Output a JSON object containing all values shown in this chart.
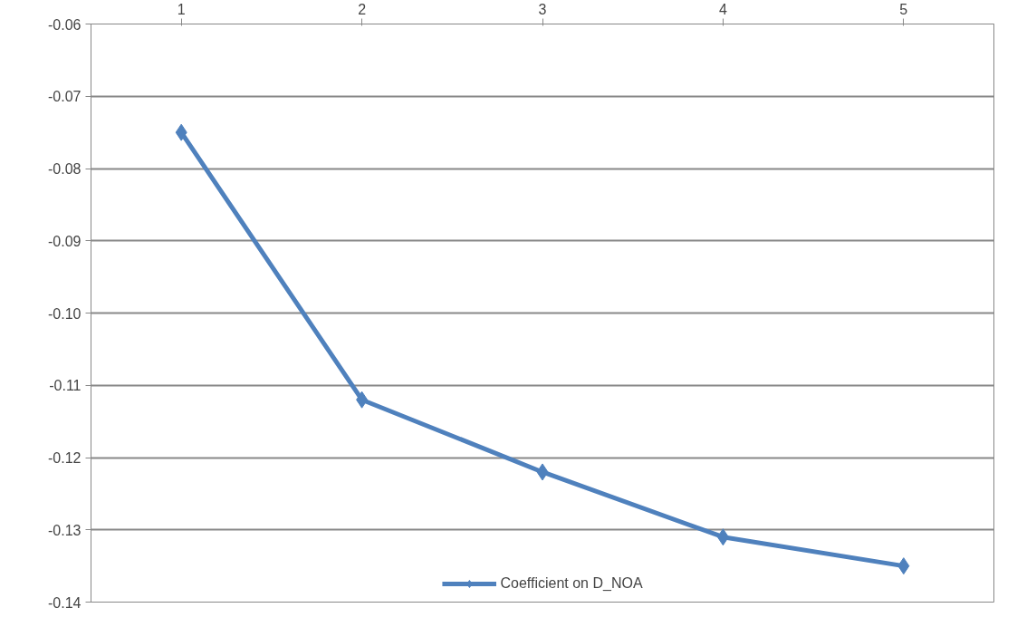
{
  "chart_data": {
    "type": "line",
    "categories": [
      "1",
      "2",
      "3",
      "4",
      "5"
    ],
    "series": [
      {
        "name": "Coefficient on D_NOA",
        "color": "#4f81bd",
        "values": [
          -0.075,
          -0.112,
          -0.122,
          -0.131,
          -0.135
        ]
      }
    ],
    "ylim": [
      -0.14,
      -0.06
    ],
    "yticks": [
      -0.14,
      -0.13,
      -0.12,
      -0.11,
      {
        "value": -0.1,
        "label": "-0.10"
      },
      -0.09,
      -0.08,
      -0.07,
      -0.06
    ],
    "grid": "y",
    "legend": "bottom",
    "marker": "diamond",
    "line_style": "solid"
  }
}
